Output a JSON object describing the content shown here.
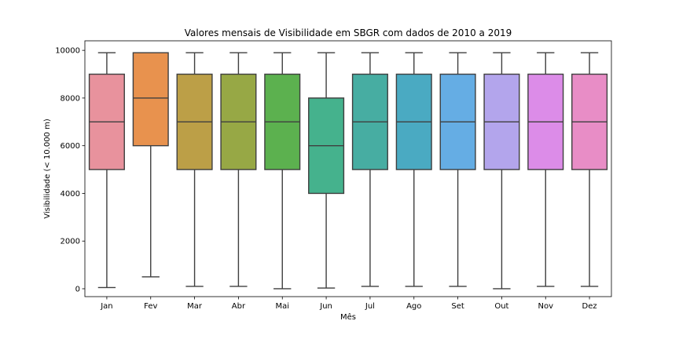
{
  "chart_data": {
    "type": "box",
    "title": "Valores mensais de Visibilidade em SBGR com dados de 2010 a 2019",
    "xlabel": "Mês",
    "ylabel": "Visibilidade (< 10.000 m)",
    "ylim": [
      -330,
      10400
    ],
    "yticks": [
      0,
      2000,
      4000,
      6000,
      8000,
      10000
    ],
    "grid": false,
    "categories": [
      "Jan",
      "Fev",
      "Mar",
      "Abr",
      "Mai",
      "Jun",
      "Jul",
      "Ago",
      "Set",
      "Out",
      "Nov",
      "Dez"
    ],
    "boxes": [
      {
        "min": 50,
        "q1": 5000,
        "median": 7000,
        "q3": 9000,
        "max": 9900,
        "color": "#e8929d"
      },
      {
        "min": 500,
        "q1": 6000,
        "median": 8000,
        "q3": 9900,
        "max": 9900,
        "color": "#e8924e"
      },
      {
        "min": 100,
        "q1": 5000,
        "median": 7000,
        "q3": 9000,
        "max": 9900,
        "color": "#bc9f47"
      },
      {
        "min": 100,
        "q1": 5000,
        "median": 7000,
        "q3": 9000,
        "max": 9900,
        "color": "#97a845"
      },
      {
        "min": 0,
        "q1": 5000,
        "median": 7000,
        "q3": 9000,
        "max": 9900,
        "color": "#5cb14f"
      },
      {
        "min": 30,
        "q1": 4000,
        "median": 6000,
        "q3": 8000,
        "max": 9900,
        "color": "#45b28d"
      },
      {
        "min": 100,
        "q1": 5000,
        "median": 7000,
        "q3": 9000,
        "max": 9900,
        "color": "#47ada2"
      },
      {
        "min": 100,
        "q1": 5000,
        "median": 7000,
        "q3": 9000,
        "max": 9900,
        "color": "#4aaac2"
      },
      {
        "min": 100,
        "q1": 5000,
        "median": 7000,
        "q3": 9000,
        "max": 9900,
        "color": "#65ade4"
      },
      {
        "min": 0,
        "q1": 5000,
        "median": 7000,
        "q3": 9000,
        "max": 9900,
        "color": "#b3a5ec"
      },
      {
        "min": 100,
        "q1": 5000,
        "median": 7000,
        "q3": 9000,
        "max": 9900,
        "color": "#dc8ce8"
      },
      {
        "min": 100,
        "q1": 5000,
        "median": 7000,
        "q3": 9000,
        "max": 9900,
        "color": "#e88dc6"
      }
    ]
  }
}
